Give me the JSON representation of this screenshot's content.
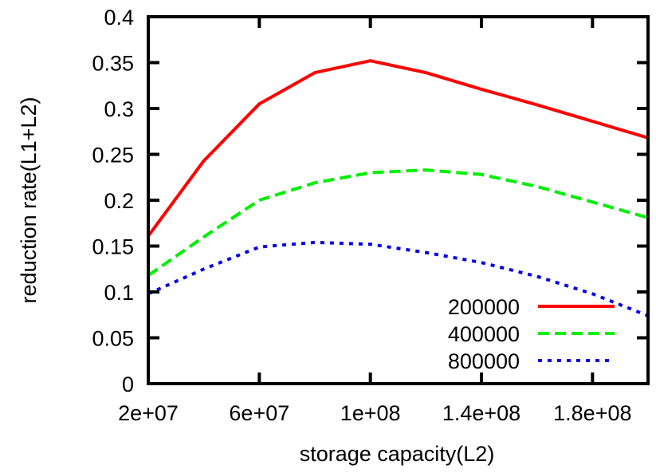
{
  "chart_data": {
    "type": "line",
    "title": "",
    "xlabel": "storage capacity(L2)",
    "ylabel": "reduction rate(L1+L2)",
    "xlim": [
      20000000,
      200000000
    ],
    "ylim": [
      0,
      0.4
    ],
    "grid": false,
    "legend_position": "bottom-right",
    "x_ticks": [
      20000000,
      60000000,
      100000000,
      140000000,
      180000000
    ],
    "x_tick_labels": [
      "2e+07",
      "6e+07",
      "1e+08",
      "1.4e+08",
      "1.8e+08"
    ],
    "x_minor_ticks": [
      200000000
    ],
    "y_ticks": [
      0,
      0.05,
      0.1,
      0.15,
      0.2,
      0.25,
      0.3,
      0.35,
      0.4
    ],
    "y_tick_labels": [
      "0",
      "0.05",
      "0.1",
      "0.15",
      "0.2",
      "0.25",
      "0.3",
      "0.35",
      "0.4"
    ],
    "x": [
      20000000,
      40000000,
      60000000,
      80000000,
      100000000,
      120000000,
      140000000,
      160000000,
      180000000,
      200000000
    ],
    "series": [
      {
        "name": "200000",
        "color": "#ff0000",
        "style": "solid",
        "values": [
          0.161,
          0.243,
          0.305,
          0.339,
          0.352,
          0.339,
          0.321,
          0.304,
          0.286,
          0.268
        ]
      },
      {
        "name": "400000",
        "color": "#00ee00",
        "style": "dashed",
        "values": [
          0.118,
          0.16,
          0.2,
          0.219,
          0.23,
          0.233,
          0.228,
          0.215,
          0.198,
          0.181
        ]
      },
      {
        "name": "800000",
        "color": "#0000ee",
        "style": "dotted",
        "values": [
          0.098,
          0.125,
          0.149,
          0.154,
          0.152,
          0.143,
          0.132,
          0.117,
          0.098,
          0.074
        ]
      }
    ]
  }
}
